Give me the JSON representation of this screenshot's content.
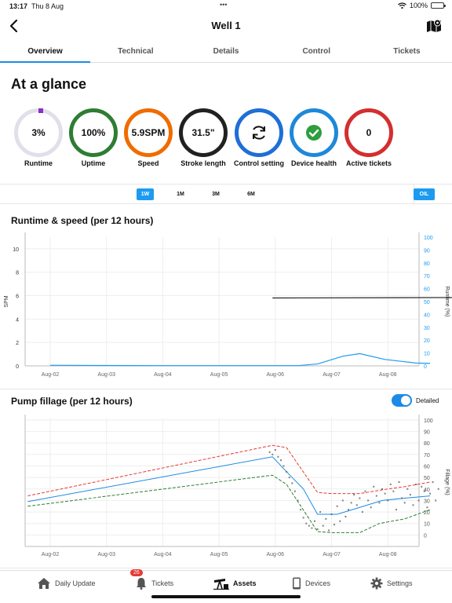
{
  "status": {
    "time": "13:17",
    "date": "Thu 8 Aug",
    "dots": "•••",
    "battery": "100%"
  },
  "header": {
    "title": "Well 1"
  },
  "tabs": [
    "Overview",
    "Technical",
    "Details",
    "Control",
    "Tickets"
  ],
  "glance": {
    "title": "At a glance",
    "kpis": [
      {
        "value": "3%",
        "label": "Runtime",
        "color": "#e0e0ea"
      },
      {
        "value": "100%",
        "label": "Uptime",
        "color": "#2e7d32"
      },
      {
        "value": "5.9SPM",
        "label": "Speed",
        "color": "#ef6c00"
      },
      {
        "value": "31.5\"",
        "label": "Stroke length",
        "color": "#212121"
      },
      {
        "value": "",
        "label": "Control setting",
        "color": "#1e6fd6",
        "icon": "sync-icon"
      },
      {
        "value": "",
        "label": "Device health",
        "color": "#1e88d9",
        "icon": "check-circle-icon"
      },
      {
        "value": "0",
        "label": "Active tickets",
        "color": "#d32f2f"
      }
    ]
  },
  "range": {
    "options": [
      "1W",
      "1M",
      "3M",
      "6M"
    ],
    "selected": "1W",
    "product": "OIL"
  },
  "chart_data": [
    {
      "type": "line",
      "title": "Runtime & speed (per 12 hours)",
      "x_ticks": [
        "Aug-02",
        "Aug-03",
        "Aug-04",
        "Aug-05",
        "Aug-06",
        "Aug-07",
        "Aug-08"
      ],
      "ylabel": "SPM",
      "ylim": [
        0,
        11
      ],
      "y_ticks": [
        0,
        2,
        4,
        6,
        8,
        10
      ],
      "y2label": "Runtime (%)",
      "y2lim": [
        0,
        100
      ],
      "y2_ticks": [
        0,
        10,
        20,
        30,
        40,
        50,
        60,
        70,
        80,
        90,
        100
      ],
      "series": [
        {
          "name": "",
          "axis": "left",
          "color": "#222222",
          "x": [
            3.95,
            7.9
          ],
          "y": [
            5.8,
            5.85
          ]
        },
        {
          "name": "",
          "axis": "right",
          "color": "#1c9bf0",
          "x": [
            0,
            1,
            2,
            3,
            3.95,
            4.4,
            4.75,
            5.2,
            5.5,
            5.95,
            6.5,
            6.75
          ],
          "y": [
            0.5,
            0.3,
            0.2,
            0.2,
            0.2,
            0.2,
            1.5,
            7.5,
            9.5,
            5.0,
            2.2,
            2.0
          ]
        }
      ]
    },
    {
      "type": "scatter",
      "title": "Pump fillage (per 12 hours)",
      "toggle_label": "Detailed",
      "toggle_on": true,
      "x_ticks": [
        "Aug-02",
        "Aug-03",
        "Aug-04",
        "Aug-05",
        "Aug-06",
        "Aug-07",
        "Aug-08"
      ],
      "y2label": "Fillage (%)",
      "y2lim": [
        -10,
        102
      ],
      "y2_ticks": [
        0,
        10,
        20,
        30,
        40,
        50,
        60,
        70,
        80,
        90,
        100
      ],
      "series": [
        {
          "name": "",
          "color": "#e53935",
          "dash": true,
          "x": [
            -0.4,
            3.95,
            4.2,
            4.75,
            5.0,
            5.5,
            6.0,
            6.3,
            6.75
          ],
          "y": [
            34,
            78,
            76,
            37,
            36,
            36,
            40,
            42,
            46
          ]
        },
        {
          "name": "",
          "color": "#1c8ae6",
          "dash": false,
          "x": [
            -0.4,
            3.95,
            4.2,
            4.5,
            4.75,
            5.1,
            5.5,
            5.9,
            6.3,
            6.75
          ],
          "y": [
            29,
            68,
            55,
            40,
            18,
            18,
            24,
            30,
            32,
            34
          ]
        },
        {
          "name": "",
          "color": "#2e7d32",
          "dash": true,
          "x": [
            -0.4,
            3.95,
            4.2,
            4.75,
            5.0,
            5.5,
            5.85,
            6.3,
            6.75
          ],
          "y": [
            25,
            52,
            44,
            3,
            2,
            2,
            10,
            14,
            22
          ]
        },
        {
          "name": "",
          "color": "#555555",
          "points": true,
          "x": [
            3.9,
            3.95,
            4.0,
            4.05,
            4.1,
            4.15,
            4.2,
            4.25,
            4.3,
            4.35,
            4.4,
            4.45,
            4.5,
            4.55,
            4.6,
            4.65,
            4.7,
            4.75,
            4.8,
            4.85,
            4.9,
            4.95,
            5.0,
            5.05,
            5.1,
            5.15,
            5.2,
            5.25,
            5.3,
            5.35,
            5.4,
            5.45,
            5.5,
            5.55,
            5.6,
            5.65,
            5.7,
            5.75,
            5.8,
            5.85,
            5.9,
            5.95,
            6.0,
            6.05,
            6.1,
            6.15,
            6.2,
            6.25,
            6.3,
            6.35,
            6.4,
            6.45,
            6.5,
            6.55,
            6.6,
            6.65,
            6.7,
            6.75,
            6.8,
            6.85,
            6.9
          ],
          "y": [
            72,
            70,
            74,
            68,
            65,
            60,
            55,
            50,
            45,
            38,
            30,
            22,
            15,
            10,
            8,
            6,
            12,
            5,
            20,
            8,
            14,
            4,
            18,
            9,
            25,
            12,
            30,
            16,
            22,
            28,
            35,
            26,
            32,
            20,
            38,
            30,
            24,
            42,
            34,
            28,
            40,
            36,
            30,
            44,
            38,
            22,
            46,
            32,
            28,
            40,
            35,
            26,
            44,
            30,
            42,
            38,
            24,
            36,
            46,
            30,
            40
          ]
        }
      ]
    }
  ],
  "bottom_nav": [
    {
      "label": "Daily Update",
      "icon": "home-icon"
    },
    {
      "label": "Tickets",
      "icon": "bell-icon",
      "badge": "26"
    },
    {
      "label": "Assets",
      "icon": "pumpjack-icon",
      "active": true
    },
    {
      "label": "Devices",
      "icon": "phone-icon"
    },
    {
      "label": "Settings",
      "icon": "gear-icon"
    }
  ]
}
